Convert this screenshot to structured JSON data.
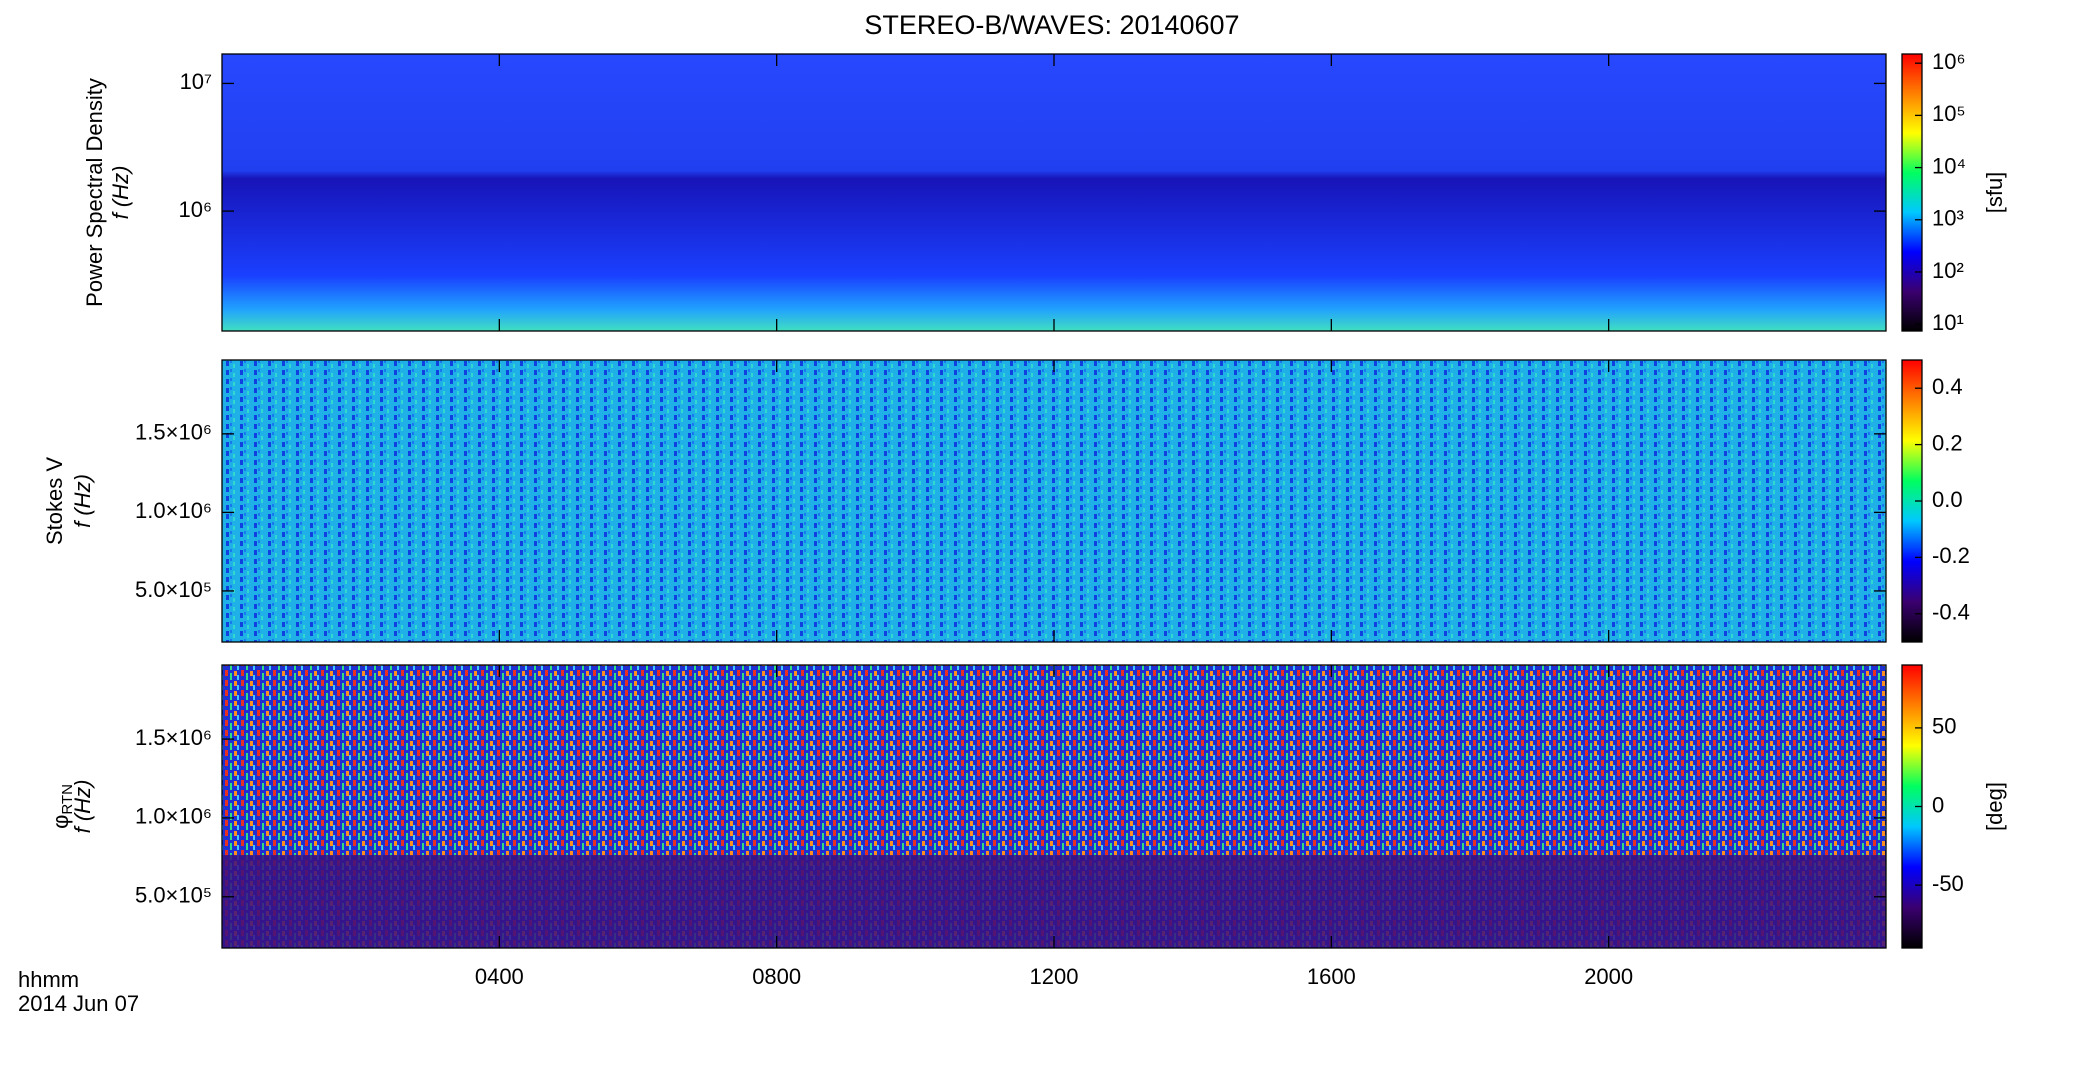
{
  "chart_data": [
    {
      "type": "spectrogram",
      "title": "STEREO-B/WAVES: 20140607",
      "ylabel": "Power Spectral Density",
      "ylabel2": "f (Hz)",
      "log": true,
      "ylim": [
        115000,
        17000000
      ],
      "yticks": [
        {
          "value": 1000000,
          "label": "10⁶"
        },
        {
          "value": 10000000,
          "label": "10⁷"
        }
      ],
      "colorbar": {
        "log": true,
        "clim": [
          7.4,
          1500000
        ],
        "label": "[sfu]",
        "colors": [
          "#000000",
          "#3a0070",
          "#0000ff",
          "#00c8ff",
          "#00ff60",
          "#ffff00",
          "#ff8000",
          "#ff0000"
        ],
        "ticks": [
          {
            "value": 10,
            "label": "10¹"
          },
          {
            "value": 100,
            "label": "10²"
          },
          {
            "value": 1000,
            "label": "10³"
          },
          {
            "value": 10000,
            "label": "10⁴"
          },
          {
            "value": 100000,
            "label": "10⁵"
          },
          {
            "value": 1000000,
            "label": "10⁶"
          }
        ]
      }
    },
    {
      "type": "spectrogram",
      "ylabel": "Stokes V",
      "ylabel2": "f (Hz)",
      "log": false,
      "ylim": [
        175000,
        1970000
      ],
      "yticks": [
        {
          "value": 500000,
          "label": "5.0×10⁵"
        },
        {
          "value": 1000000,
          "label": "1.0×10⁶"
        },
        {
          "value": 1500000,
          "label": "1.5×10⁶"
        }
      ],
      "colorbar": {
        "log": false,
        "clim": [
          -0.5,
          0.5
        ],
        "colors": [
          "#000000",
          "#3a0070",
          "#0000ff",
          "#00c8ff",
          "#00ff60",
          "#ffff00",
          "#ff8000",
          "#ff0000"
        ],
        "ticks": [
          -0.4,
          -0.2,
          {
            "value": 0,
            "label": "0.0"
          },
          0.2,
          0.4
        ]
      }
    },
    {
      "type": "spectrogram",
      "ylabel": "φ",
      "ylabel_sub": "RTN",
      "ylabel2": "f (Hz)",
      "log": false,
      "ylim": [
        175000,
        1970000
      ],
      "yticks": [
        {
          "value": 500000,
          "label": "5.0×10⁵"
        },
        {
          "value": 1000000,
          "label": "1.0×10⁶"
        },
        {
          "value": 1500000,
          "label": "1.5×10⁶"
        }
      ],
      "colorbar": {
        "log": false,
        "clim": [
          -90,
          90
        ],
        "label": "[deg]",
        "colors": [
          "#000000",
          "#3a0070",
          "#0000ff",
          "#00c8ff",
          "#00ff60",
          "#ffff00",
          "#ff8000",
          "#ff0000"
        ],
        "ticks": [
          -50,
          0,
          50
        ]
      },
      "xlabel": "hhmm",
      "xlabel2": "2014 Jun 07",
      "xlim": [
        0,
        24
      ],
      "xticks": [
        {
          "value": 4,
          "label": "0400"
        },
        {
          "value": 8,
          "label": "0800"
        },
        {
          "value": 12,
          "label": "1200"
        },
        {
          "value": 16,
          "label": "1600"
        },
        {
          "value": 20,
          "label": "2000"
        }
      ]
    }
  ]
}
